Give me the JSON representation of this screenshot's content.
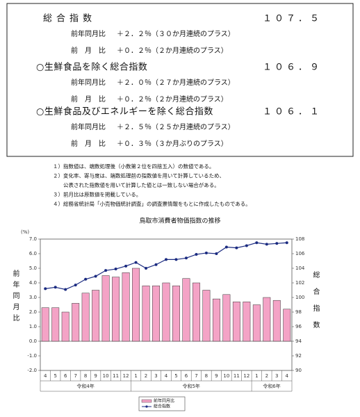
{
  "summary": [
    {
      "title": "総合指数",
      "value": "１０７．５",
      "rows": [
        {
          "label": "前年同月比",
          "text": "＋２．２％（３０か月連続のプラス）"
        },
        {
          "label": "前　月　比",
          "text": "＋０．２％（２か月連続のプラス）"
        }
      ]
    },
    {
      "title": "○生鮮食品を除く総合指数",
      "value": "１０６．９",
      "rows": [
        {
          "label": "前年同月比",
          "text": "＋２．０％（２７か月連続のプラス）"
        },
        {
          "label": "前　月　比",
          "text": "＋０．２％（２か月連続のプラス）"
        }
      ]
    },
    {
      "title": "○生鮮食品及びエネルギーを除く総合指数",
      "value": "１０６．１",
      "rows": [
        {
          "label": "前年同月比",
          "text": "＋２．５％（２５か月連続のプラス）"
        },
        {
          "label": "前　月　比",
          "text": "＋０．３％（３か月ぶりのプラス）"
        }
      ]
    }
  ],
  "notes": [
    "１）指数値は、端数処理後（小数第２位を四捨五入）の数値である。",
    "２）変化率、寄与度は、端数処理前の指数値を用いて計算しているため、",
    "　　公表された指数値を用いて計算した値とは一致しない場合がある。",
    "３）前月比は原数値を掲載している。",
    "４）総務省統計局「小売物価統計調査」の調査票情報をもとに作成したものである。"
  ],
  "chart_data": {
    "type": "bar",
    "title": "鳥取市消費者物価指数の推移",
    "y_unit_label": "(%)",
    "ylabel": "前年同月比",
    "y2label": "総合指数",
    "categories": [
      "4",
      "5",
      "6",
      "7",
      "8",
      "9",
      "10",
      "11",
      "12",
      "1",
      "2",
      "3",
      "4",
      "5",
      "6",
      "7",
      "8",
      "9",
      "10",
      "11",
      "12",
      "1",
      "2",
      "3",
      "4"
    ],
    "x_groups": [
      "令和4年",
      "令和5年",
      "令和6年"
    ],
    "series": [
      {
        "name": "前年同月比",
        "type": "bar",
        "color": "#f4a3c6",
        "values": [
          2.3,
          2.3,
          2.0,
          2.6,
          3.3,
          3.5,
          4.5,
          4.4,
          4.7,
          5.0,
          3.8,
          3.8,
          4.0,
          3.8,
          4.3,
          4.0,
          3.5,
          2.9,
          3.2,
          2.7,
          2.7,
          2.5,
          3.0,
          2.8,
          2.2
        ]
      },
      {
        "name": "総合指数",
        "type": "line",
        "axis": "y2",
        "color": "#1a2a80",
        "values": [
          101.2,
          101.4,
          101.1,
          101.7,
          102.5,
          102.9,
          103.7,
          103.9,
          104.3,
          104.8,
          104.0,
          104.5,
          105.2,
          105.2,
          105.4,
          105.9,
          106.1,
          106.0,
          106.9,
          106.8,
          107.1,
          107.5,
          107.3,
          107.4,
          107.5
        ]
      }
    ],
    "ylim": [
      -2,
      7
    ],
    "yticks": [
      {
        "value": -2,
        "label": "-2.0"
      },
      {
        "value": -1,
        "label": "-1.0"
      },
      {
        "value": 0,
        "label": "0.0"
      },
      {
        "value": 1,
        "label": "1.0"
      },
      {
        "value": 2,
        "label": "2.0"
      },
      {
        "value": 3,
        "label": "3.0"
      },
      {
        "value": 4,
        "label": "4.0"
      },
      {
        "value": 5,
        "label": "5.0"
      },
      {
        "value": 6,
        "label": "6.0"
      },
      {
        "value": 7,
        "label": "7.0"
      }
    ],
    "y2lim": [
      90,
      108
    ],
    "y2ticks": [
      90,
      92,
      94,
      96,
      98,
      100,
      102,
      104,
      106,
      108
    ],
    "grid": false
  }
}
